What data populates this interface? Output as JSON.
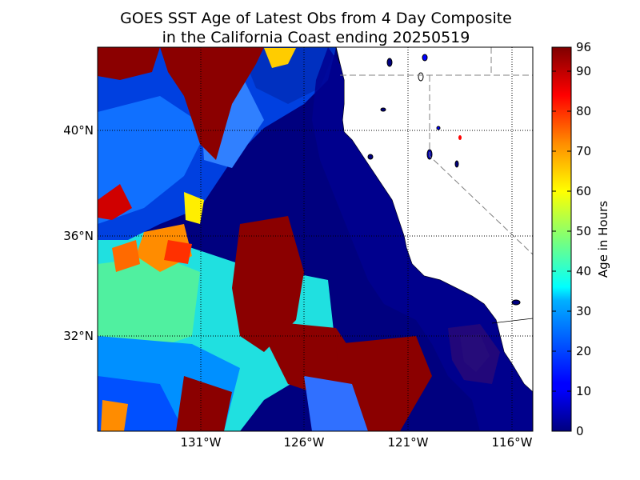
{
  "title": {
    "line1": "GOES SST Age of Latest Obs from 4 Day Composite",
    "line2": "in the California Coast ending 20250519"
  },
  "map": {
    "lat_labels": [
      "40°N",
      "36°N",
      "32°N"
    ],
    "lon_labels": [
      "131°W",
      "126°W",
      "121°W",
      "116°W"
    ]
  },
  "colorbar": {
    "label": "Age in Hours",
    "ticks": [
      "96",
      "90",
      "80",
      "70",
      "60",
      "50",
      "40",
      "30",
      "20",
      "10",
      "0"
    ],
    "colormap": "jet",
    "range": [
      0,
      96
    ]
  },
  "colors": {
    "land": "#ffffff",
    "deep_blue": "#00007f",
    "grid": "#000000",
    "border": "#808080"
  }
}
